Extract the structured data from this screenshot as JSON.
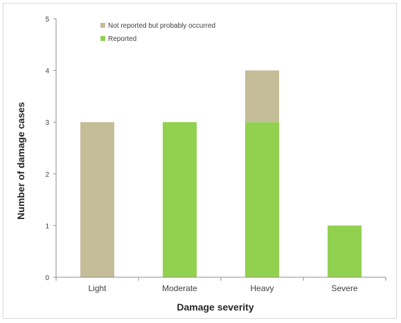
{
  "chart_data": {
    "type": "bar",
    "stacked": true,
    "title": "",
    "xlabel": "Damage severity",
    "ylabel": "Number of damage cases",
    "categories": [
      "Light",
      "Moderate",
      "Heavy",
      "Severe"
    ],
    "ylim": [
      0,
      5
    ],
    "yticks": [
      "0",
      "1",
      "2",
      "3",
      "4",
      "5"
    ],
    "grid": false,
    "legend_position": "top-left",
    "series": [
      {
        "name": "Reported",
        "values": [
          0,
          3,
          3,
          1
        ],
        "color": "#92d050"
      },
      {
        "name": "Not reported but probably occurred",
        "values": [
          3,
          0,
          1,
          0
        ],
        "color": "#c4bd97"
      }
    ],
    "legend_order": [
      1,
      0
    ]
  }
}
